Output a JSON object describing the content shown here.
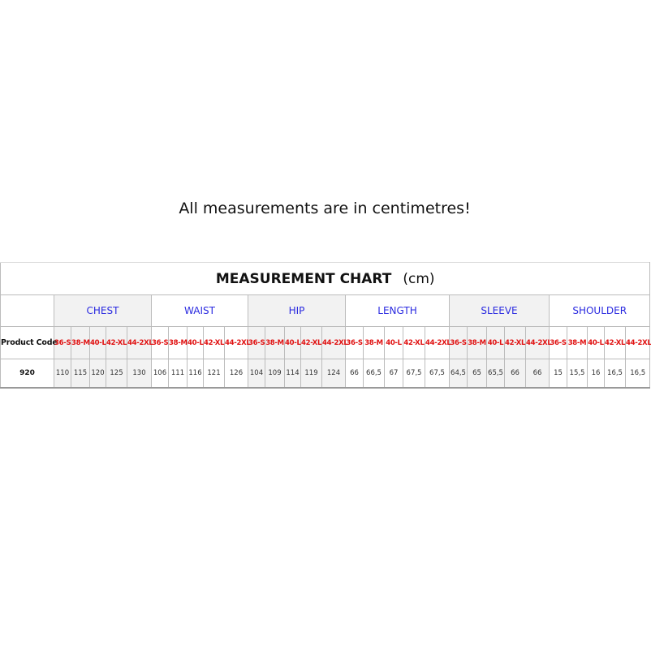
{
  "note": "All measurements are in centimetres!",
  "chart": {
    "title": "MEASUREMENT CHART",
    "unit": "(cm)",
    "product_code_label": "Product Code",
    "sizes": [
      "36-S",
      "38-M",
      "40-L",
      "42-XL",
      "44-2XL"
    ],
    "groups": [
      {
        "name": "CHEST",
        "shaded": true,
        "values": [
          "110",
          "115",
          "120",
          "125",
          "130"
        ]
      },
      {
        "name": "WAIST",
        "shaded": false,
        "values": [
          "106",
          "111",
          "116",
          "121",
          "126"
        ]
      },
      {
        "name": "HIP",
        "shaded": true,
        "values": [
          "104",
          "109",
          "114",
          "119",
          "124"
        ]
      },
      {
        "name": "LENGTH",
        "shaded": false,
        "values": [
          "66",
          "66,5",
          "67",
          "67,5",
          "67,5"
        ]
      },
      {
        "name": "SLEEVE",
        "shaded": true,
        "values": [
          "64,5",
          "65",
          "65,5",
          "66",
          "66"
        ]
      },
      {
        "name": "SHOULDER",
        "shaded": false,
        "values": [
          "15",
          "15,5",
          "16",
          "16,5",
          "16,5"
        ]
      }
    ],
    "product_code": "920",
    "colors": {
      "group_header": "#2a2ae0",
      "size_label": "#e01010",
      "shade": "#f2f2f2"
    }
  }
}
